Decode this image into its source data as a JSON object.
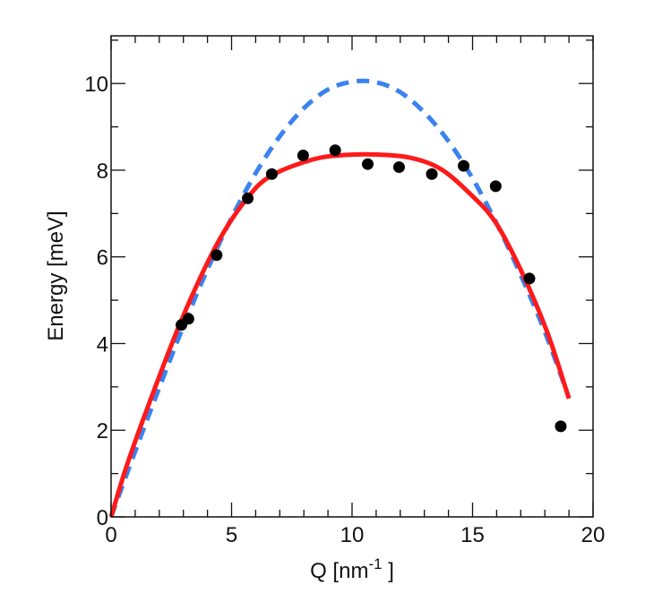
{
  "chart_data": {
    "type": "line",
    "title": "",
    "xlabel": "Q [nm",
    "xlabel_superscript": "-1",
    "xlabel_suffix": " ]",
    "ylabel": "Energy [meV]",
    "xlim": [
      0,
      20
    ],
    "ylim": [
      0,
      11.1
    ],
    "x_major_ticks": [
      0,
      5,
      10,
      15,
      20
    ],
    "x_tick_labels": [
      "0",
      "5",
      "10",
      "15",
      "20"
    ],
    "x_minor_step": 1,
    "y_major_ticks": [
      0,
      2,
      4,
      6,
      8,
      10
    ],
    "y_tick_labels": [
      "0",
      "2",
      "4",
      "6",
      "8",
      "10"
    ],
    "y_minor_step": 1,
    "grid": false,
    "legend": "none",
    "series": [
      {
        "style": "scatter",
        "color": "#000000",
        "x": [
          2.92,
          3.21,
          4.38,
          5.67,
          6.67,
          7.97,
          9.3,
          10.65,
          11.95,
          13.31,
          14.63,
          15.96,
          17.36,
          18.66
        ],
        "y": [
          4.43,
          4.57,
          6.04,
          7.35,
          7.91,
          8.34,
          8.46,
          8.14,
          8.07,
          7.91,
          8.1,
          7.63,
          5.5,
          2.09
        ]
      },
      {
        "style": "dashed",
        "color": "#3b82f0",
        "x": [
          0,
          1,
          2,
          3,
          4,
          5,
          6,
          7,
          8,
          9,
          10,
          11,
          12,
          13,
          14,
          15,
          16,
          17,
          18,
          19
        ],
        "y": [
          0,
          1.51,
          2.98,
          4.4,
          5.71,
          6.9,
          7.93,
          8.78,
          9.43,
          9.86,
          10.04,
          10.03,
          9.8,
          9.33,
          8.67,
          7.81,
          6.77,
          5.58,
          4.27,
          2.75
        ]
      },
      {
        "style": "solid",
        "color": "#ff1a1a",
        "x": [
          0,
          0.62,
          1.5,
          2.92,
          4.41,
          5.67,
          6.67,
          8.39,
          9.7,
          11.05,
          12.4,
          13.7,
          15,
          15.96,
          17,
          18.1,
          19
        ],
        "y": [
          0,
          1.13,
          2.5,
          4.54,
          6.31,
          7.37,
          7.88,
          8.25,
          8.35,
          8.36,
          8.29,
          8.02,
          7.4,
          6.79,
          5.7,
          4.26,
          2.73
        ]
      }
    ]
  }
}
